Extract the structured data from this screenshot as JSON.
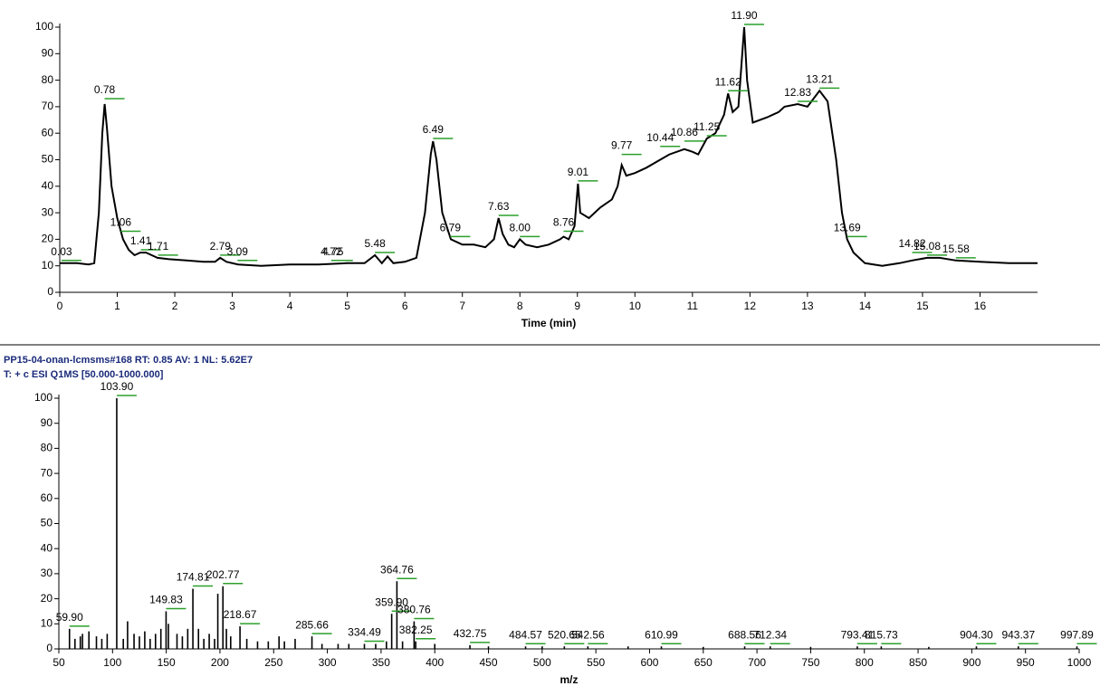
{
  "chart_data": [
    {
      "type": "line",
      "xlabel": "Time (min)",
      "xlim": [
        0,
        17
      ],
      "xticks": [
        0,
        1,
        2,
        3,
        4,
        5,
        6,
        7,
        8,
        9,
        10,
        11,
        12,
        13,
        14,
        15,
        16
      ],
      "ylim": [
        0,
        100
      ],
      "yticks": [
        0,
        10,
        20,
        30,
        40,
        50,
        60,
        70,
        80,
        90,
        100
      ],
      "color": "#000000",
      "annotation_color": "#2ca02c",
      "x": [
        0,
        0.3,
        0.5,
        0.6,
        0.68,
        0.74,
        0.78,
        0.82,
        0.9,
        1.0,
        1.1,
        1.2,
        1.3,
        1.4,
        1.5,
        1.6,
        1.7,
        1.9,
        2.2,
        2.5,
        2.7,
        2.79,
        2.9,
        3.1,
        3.5,
        4.0,
        4.5,
        5.0,
        5.3,
        5.48,
        5.6,
        5.7,
        5.8,
        6.0,
        6.2,
        6.35,
        6.45,
        6.49,
        6.55,
        6.65,
        6.8,
        7.0,
        7.2,
        7.4,
        7.55,
        7.63,
        7.7,
        7.8,
        7.9,
        8.0,
        8.1,
        8.3,
        8.5,
        8.7,
        8.76,
        8.85,
        8.95,
        9.01,
        9.05,
        9.2,
        9.4,
        9.6,
        9.7,
        9.77,
        9.85,
        10.0,
        10.2,
        10.44,
        10.6,
        10.86,
        11.0,
        11.1,
        11.25,
        11.4,
        11.55,
        11.62,
        11.7,
        11.8,
        11.85,
        11.9,
        11.95,
        12.05,
        12.3,
        12.5,
        12.6,
        12.83,
        13.0,
        13.21,
        13.35,
        13.5,
        13.6,
        13.69,
        13.8,
        14.0,
        14.3,
        14.6,
        14.82,
        15.08,
        15.3,
        15.58,
        16.0,
        16.5,
        17.0
      ],
      "values": [
        11,
        11,
        10.5,
        11,
        30,
        60,
        71,
        62,
        40,
        28,
        20,
        16,
        14,
        15,
        15,
        14,
        13,
        12.5,
        12,
        11.5,
        11.5,
        13,
        11.5,
        10.5,
        10,
        10.5,
        10.5,
        11,
        11,
        14,
        11,
        13.5,
        11,
        11.5,
        13,
        30,
        52,
        57,
        50,
        30,
        20,
        18,
        18,
        17,
        20,
        28,
        22,
        18,
        17,
        20,
        18,
        17,
        18,
        20,
        21,
        20,
        25,
        41,
        30,
        28,
        32,
        35,
        40,
        48,
        44,
        45,
        47,
        50,
        52,
        54,
        53,
        52,
        58,
        60,
        67,
        75,
        68,
        70,
        85,
        100,
        80,
        64,
        66,
        68,
        70,
        71,
        70,
        76,
        72,
        50,
        30,
        20,
        15,
        11,
        10,
        11,
        12,
        13,
        13,
        12,
        11.5,
        11,
        11
      ],
      "annotations": [
        {
          "x": 0.03,
          "y": 11,
          "label": "0.03"
        },
        {
          "x": 0.78,
          "y": 72,
          "label": "0.78"
        },
        {
          "x": 1.06,
          "y": 22,
          "label": "1.06"
        },
        {
          "x": 1.41,
          "y": 15,
          "label": "1.41"
        },
        {
          "x": 1.71,
          "y": 13,
          "label": "1.71"
        },
        {
          "x": 2.79,
          "y": 13,
          "label": "2.79"
        },
        {
          "x": 3.09,
          "y": 11,
          "label": "3.09"
        },
        {
          "x": 4.72,
          "y": 11,
          "label": "4.72"
        },
        {
          "x": 4.75,
          "y": 11,
          "label": "4.75"
        },
        {
          "x": 5.48,
          "y": 14,
          "label": "5.48"
        },
        {
          "x": 6.49,
          "y": 57,
          "label": "6.49"
        },
        {
          "x": 6.79,
          "y": 20,
          "label": "6.79"
        },
        {
          "x": 7.63,
          "y": 28,
          "label": "7.63"
        },
        {
          "x": 8.0,
          "y": 20,
          "label": "8.00"
        },
        {
          "x": 8.76,
          "y": 22,
          "label": "8.76"
        },
        {
          "x": 9.01,
          "y": 41,
          "label": "9.01"
        },
        {
          "x": 9.77,
          "y": 51,
          "label": "9.77"
        },
        {
          "x": 10.44,
          "y": 54,
          "label": "10.44"
        },
        {
          "x": 10.86,
          "y": 56,
          "label": "10.86"
        },
        {
          "x": 11.25,
          "y": 58,
          "label": "11.25"
        },
        {
          "x": 11.62,
          "y": 75,
          "label": "11.62"
        },
        {
          "x": 11.9,
          "y": 100,
          "label": "11.90"
        },
        {
          "x": 12.83,
          "y": 71,
          "label": "12.83"
        },
        {
          "x": 13.21,
          "y": 76,
          "label": "13.21"
        },
        {
          "x": 13.69,
          "y": 20,
          "label": "13.69"
        },
        {
          "x": 14.82,
          "y": 14,
          "label": "14.82"
        },
        {
          "x": 15.08,
          "y": 13,
          "label": "15.08"
        },
        {
          "x": 15.58,
          "y": 12,
          "label": "15.58"
        }
      ]
    },
    {
      "type": "stem",
      "title": "PP15-04-onan-lcmsms#168  RT: 0.85  AV: 1  NL: 5.62E7",
      "subtitle": "T: + c ESI Q1MS [50.000-1000.000]",
      "xlabel": "m/z",
      "xlim": [
        50,
        1000
      ],
      "xticks": [
        50,
        100,
        150,
        200,
        250,
        300,
        350,
        400,
        450,
        500,
        550,
        600,
        650,
        700,
        750,
        800,
        850,
        900,
        950,
        1000
      ],
      "ylim": [
        0,
        100
      ],
      "yticks": [
        0,
        10,
        20,
        30,
        40,
        50,
        60,
        70,
        80,
        90,
        100
      ],
      "color": "#000000",
      "annotation_color": "#2ca02c",
      "x": [
        59.9,
        65,
        70,
        72,
        78,
        85,
        90,
        95,
        103.9,
        110,
        114,
        120,
        125,
        130,
        135,
        140,
        145,
        149.83,
        152,
        160,
        165,
        170,
        174.81,
        180,
        185,
        190,
        195,
        198,
        202.77,
        206,
        210,
        218.67,
        225,
        235,
        245,
        255,
        260,
        270,
        285.66,
        295,
        310,
        320,
        334.49,
        345,
        355,
        359.9,
        364.76,
        370,
        380.76,
        382.25,
        400,
        432.75,
        450,
        484.57,
        500,
        520.65,
        542.56,
        580,
        610.99,
        650,
        688.56,
        712.34,
        750,
        793.41,
        815.73,
        860,
        904.3,
        943.37,
        997.89
      ],
      "values": [
        8,
        4,
        5,
        6,
        7,
        5,
        4,
        6,
        100,
        4,
        11,
        6,
        5,
        7,
        4,
        6,
        8,
        15,
        10,
        6,
        5,
        8,
        24,
        8,
        4,
        6,
        4,
        22,
        25,
        8,
        5,
        9,
        4,
        3,
        3,
        5,
        3,
        4,
        5,
        2,
        2,
        2,
        2,
        2,
        3,
        14,
        27,
        3,
        11,
        3,
        2,
        1.5,
        1,
        1,
        1,
        1,
        1,
        1,
        1,
        0.8,
        1,
        1,
        0.8,
        1,
        1,
        0.8,
        1,
        1,
        1
      ],
      "annotations": [
        {
          "x": 59.9,
          "y": 8,
          "label": "59.90"
        },
        {
          "x": 103.9,
          "y": 100,
          "label": "103.90"
        },
        {
          "x": 149.83,
          "y": 15,
          "label": "149.83"
        },
        {
          "x": 174.81,
          "y": 24,
          "label": "174.81"
        },
        {
          "x": 202.77,
          "y": 25,
          "label": "202.77"
        },
        {
          "x": 218.67,
          "y": 9,
          "label": "218.67"
        },
        {
          "x": 285.66,
          "y": 5,
          "label": "285.66"
        },
        {
          "x": 334.49,
          "y": 2,
          "label": "334.49"
        },
        {
          "x": 359.9,
          "y": 14,
          "label": "359.90"
        },
        {
          "x": 364.76,
          "y": 27,
          "label": "364.76"
        },
        {
          "x": 380.76,
          "y": 11,
          "label": "380.76"
        },
        {
          "x": 382.25,
          "y": 3,
          "label": "382.25"
        },
        {
          "x": 432.75,
          "y": 1.5,
          "label": "432.75"
        },
        {
          "x": 484.57,
          "y": 1,
          "label": "484.57"
        },
        {
          "x": 520.65,
          "y": 1,
          "label": "520.65"
        },
        {
          "x": 542.56,
          "y": 1,
          "label": "542.56"
        },
        {
          "x": 610.99,
          "y": 1,
          "label": "610.99"
        },
        {
          "x": 688.56,
          "y": 1,
          "label": "688.56"
        },
        {
          "x": 712.34,
          "y": 1,
          "label": "712.34"
        },
        {
          "x": 793.41,
          "y": 1,
          "label": "793.41"
        },
        {
          "x": 815.73,
          "y": 1,
          "label": "815.73"
        },
        {
          "x": 904.3,
          "y": 1,
          "label": "904.30"
        },
        {
          "x": 943.37,
          "y": 1,
          "label": "943.37"
        },
        {
          "x": 997.89,
          "y": 1,
          "label": "997.89"
        }
      ]
    }
  ]
}
